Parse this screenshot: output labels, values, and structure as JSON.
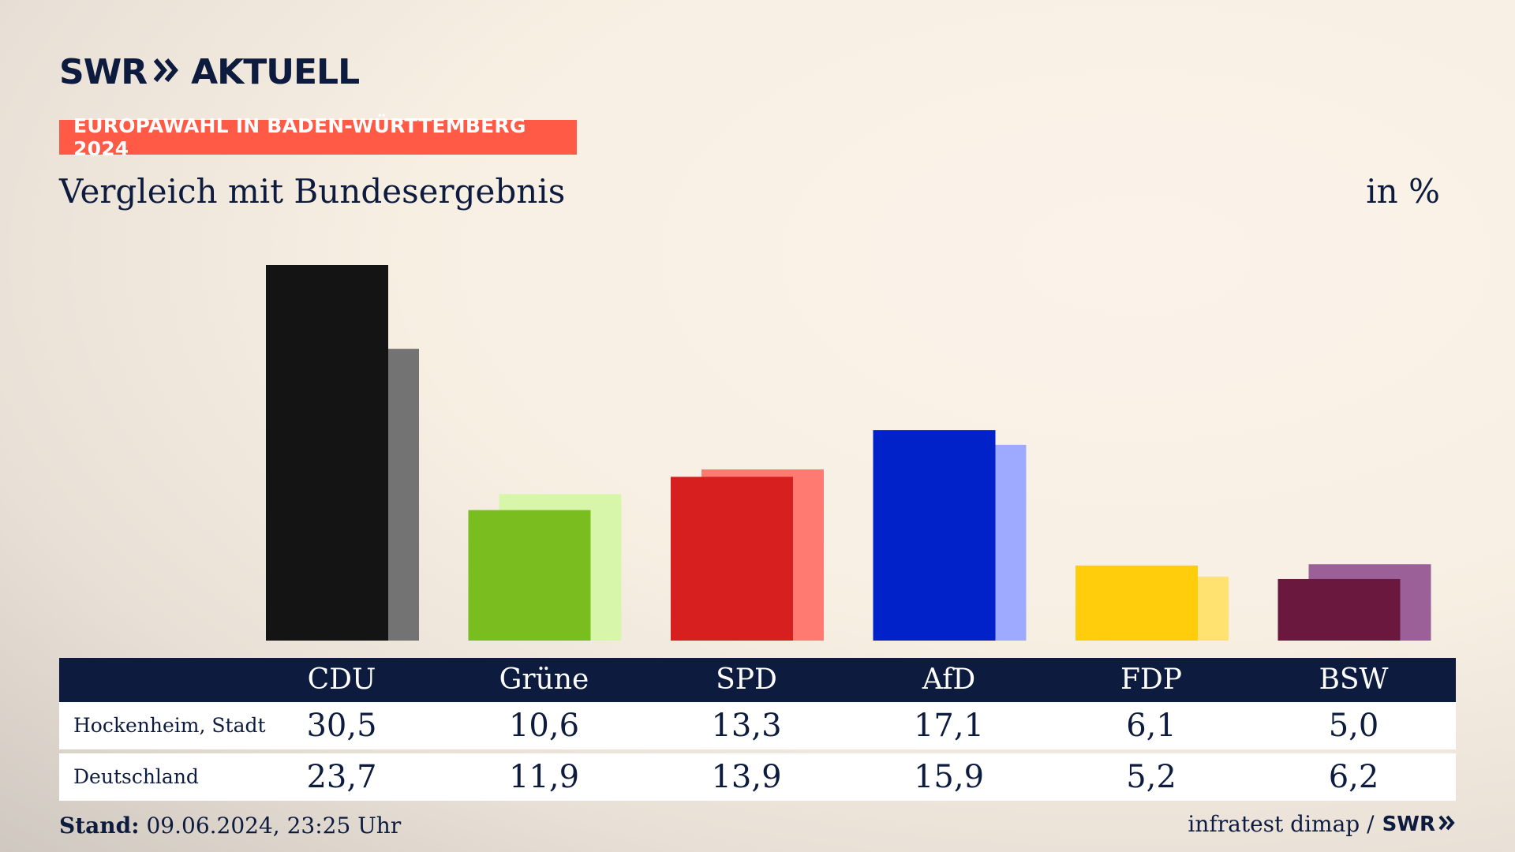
{
  "logo": {
    "part1": "SWR",
    "part2": "AKTUELL"
  },
  "tag": "EUROPAWAHL IN BADEN-WÜRTTEMBERG 2024",
  "subtitle": "Vergleich mit Bundesergebnis",
  "unit": "in %",
  "footer": {
    "stand_label": "Stand:",
    "stand_value": "09.06.2024, 23:25 Uhr",
    "source": "infratest dimap /",
    "source_brand": "SWR"
  },
  "colors": {
    "navy": "#0d1b3e",
    "tag": "#ff5a45",
    "CDU": [
      "#141414",
      "#737373"
    ],
    "Grüne": [
      "#79be1e",
      "#d8f6a9"
    ],
    "SPD": [
      "#d71f1f",
      "#ff7a70"
    ],
    "AfD": [
      "#0022c8",
      "#9eaaff"
    ],
    "FDP": [
      "#ffcd0c",
      "#ffe270"
    ],
    "BSW": [
      "#6b183f",
      "#9b6098"
    ]
  },
  "chart_data": {
    "type": "bar",
    "categories": [
      "CDU",
      "Grüne",
      "SPD",
      "AfD",
      "FDP",
      "BSW"
    ],
    "series": [
      {
        "name": "Hockenheim, Stadt",
        "values": [
          30.5,
          10.6,
          13.3,
          17.1,
          6.1,
          5.0
        ],
        "labels": [
          "30,5",
          "10,6",
          "13,3",
          "17,1",
          "6,1",
          "5,0"
        ]
      },
      {
        "name": "Deutschland",
        "values": [
          23.7,
          11.9,
          13.9,
          15.9,
          5.2,
          6.2
        ],
        "labels": [
          "23,7",
          "11,9",
          "13,9",
          "15,9",
          "5,2",
          "6,2"
        ]
      }
    ],
    "ylim": [
      0,
      30.5
    ],
    "grid": false,
    "legend": "table-below"
  }
}
